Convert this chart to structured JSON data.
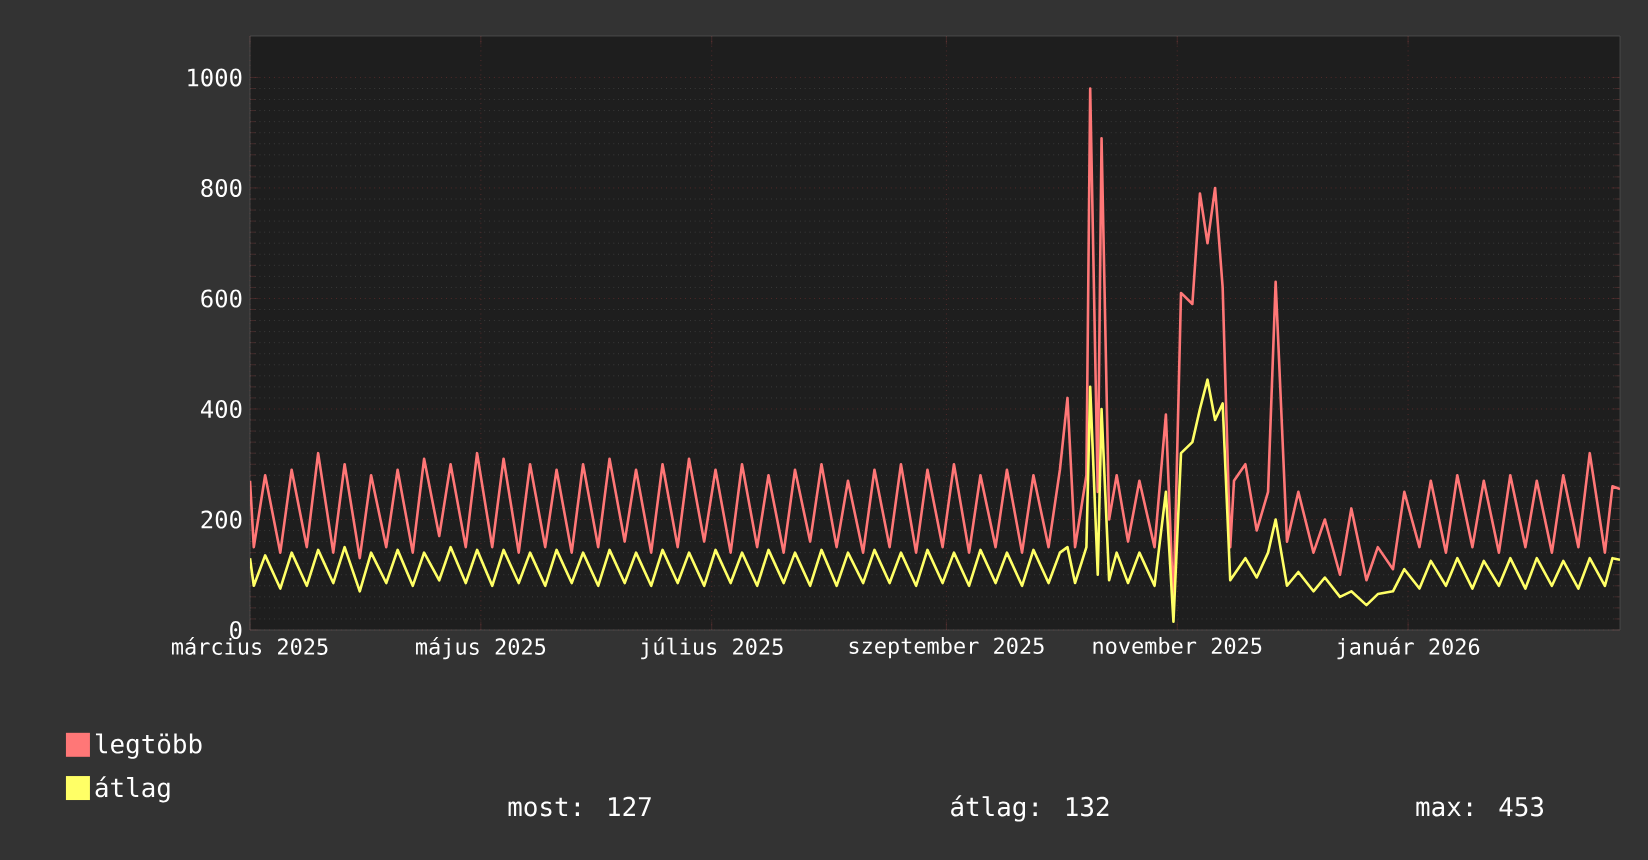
{
  "chart_data": {
    "type": "line",
    "x": [
      "2025-03-01",
      "2025-03-02",
      "2025-03-05",
      "2025-03-09",
      "2025-03-12",
      "2025-03-16",
      "2025-03-19",
      "2025-03-23",
      "2025-03-26",
      "2025-03-30",
      "2025-04-02",
      "2025-04-06",
      "2025-04-09",
      "2025-04-13",
      "2025-04-16",
      "2025-04-20",
      "2025-04-23",
      "2025-04-27",
      "2025-04-30",
      "2025-05-04",
      "2025-05-07",
      "2025-05-11",
      "2025-05-14",
      "2025-05-18",
      "2025-05-21",
      "2025-05-25",
      "2025-05-28",
      "2025-06-01",
      "2025-06-04",
      "2025-06-08",
      "2025-06-11",
      "2025-06-15",
      "2025-06-18",
      "2025-06-22",
      "2025-06-25",
      "2025-06-29",
      "2025-07-02",
      "2025-07-06",
      "2025-07-09",
      "2025-07-13",
      "2025-07-16",
      "2025-07-20",
      "2025-07-23",
      "2025-07-27",
      "2025-07-30",
      "2025-08-03",
      "2025-08-06",
      "2025-08-10",
      "2025-08-13",
      "2025-08-17",
      "2025-08-20",
      "2025-08-24",
      "2025-08-27",
      "2025-08-31",
      "2025-09-03",
      "2025-09-07",
      "2025-09-10",
      "2025-09-14",
      "2025-09-17",
      "2025-09-21",
      "2025-09-24",
      "2025-09-28",
      "2025-10-01",
      "2025-10-03",
      "2025-10-05",
      "2025-10-08",
      "2025-10-09",
      "2025-10-11",
      "2025-10-12",
      "2025-10-14",
      "2025-10-16",
      "2025-10-19",
      "2025-10-22",
      "2025-10-26",
      "2025-10-29",
      "2025-10-31",
      "2025-11-02",
      "2025-11-05",
      "2025-11-07",
      "2025-11-09",
      "2025-11-11",
      "2025-11-13",
      "2025-11-15",
      "2025-11-16",
      "2025-11-19",
      "2025-11-22",
      "2025-11-25",
      "2025-11-27",
      "2025-11-30",
      "2025-12-03",
      "2025-12-07",
      "2025-12-10",
      "2025-12-14",
      "2025-12-17",
      "2025-12-21",
      "2025-12-24",
      "2025-12-28",
      "2025-12-31",
      "2026-01-04",
      "2026-01-07",
      "2026-01-11",
      "2026-01-14",
      "2026-01-18",
      "2026-01-21",
      "2026-01-25",
      "2026-01-28",
      "2026-02-01",
      "2026-02-04",
      "2026-02-08",
      "2026-02-11",
      "2026-02-15",
      "2026-02-18",
      "2026-02-22",
      "2026-02-24",
      "2026-02-26"
    ],
    "series": [
      {
        "name": "legtöbb",
        "color": "#ff7777",
        "values": [
          270,
          150,
          280,
          140,
          290,
          150,
          320,
          140,
          300,
          130,
          280,
          150,
          290,
          140,
          310,
          170,
          300,
          150,
          320,
          150,
          310,
          140,
          300,
          150,
          290,
          140,
          300,
          150,
          310,
          160,
          290,
          140,
          300,
          150,
          310,
          160,
          290,
          140,
          300,
          150,
          280,
          140,
          290,
          160,
          300,
          150,
          270,
          140,
          290,
          150,
          300,
          140,
          290,
          150,
          300,
          140,
          280,
          150,
          290,
          140,
          280,
          150,
          290,
          420,
          150,
          280,
          980,
          250,
          890,
          200,
          280,
          160,
          270,
          150,
          390,
          40,
          610,
          590,
          790,
          700,
          800,
          620,
          150,
          270,
          300,
          180,
          250,
          630,
          160,
          250,
          140,
          200,
          100,
          220,
          90,
          150,
          110,
          250,
          150,
          270,
          140,
          280,
          150,
          270,
          140,
          280,
          150,
          270,
          140,
          280,
          150,
          320,
          140,
          260,
          255
        ]
      },
      {
        "name": "átlag",
        "color": "#ffff66",
        "values": [
          130,
          80,
          135,
          75,
          140,
          80,
          145,
          85,
          150,
          70,
          140,
          85,
          145,
          80,
          140,
          90,
          150,
          85,
          145,
          80,
          145,
          85,
          140,
          80,
          145,
          85,
          140,
          80,
          145,
          85,
          140,
          80,
          145,
          85,
          140,
          80,
          145,
          85,
          140,
          80,
          145,
          85,
          140,
          80,
          145,
          80,
          140,
          85,
          145,
          85,
          140,
          80,
          145,
          85,
          140,
          80,
          145,
          85,
          140,
          80,
          145,
          85,
          140,
          150,
          85,
          150,
          440,
          100,
          400,
          90,
          140,
          85,
          140,
          80,
          250,
          15,
          320,
          340,
          400,
          453,
          380,
          410,
          90,
          100,
          130,
          95,
          140,
          200,
          80,
          105,
          70,
          95,
          60,
          70,
          45,
          65,
          70,
          110,
          75,
          125,
          80,
          130,
          75,
          125,
          80,
          130,
          75,
          130,
          80,
          125,
          75,
          130,
          80,
          130,
          127
        ]
      }
    ],
    "xlim": [
      "2025-03-01",
      "2026-02-26"
    ],
    "xticks": [
      {
        "value": "2025-03-01",
        "label": "március 2025"
      },
      {
        "value": "2025-05-01",
        "label": "május 2025"
      },
      {
        "value": "2025-07-01",
        "label": "július 2025"
      },
      {
        "value": "2025-09-01",
        "label": "szeptember 2025"
      },
      {
        "value": "2025-11-01",
        "label": "november 2025"
      },
      {
        "value": "2026-01-01",
        "label": "január 2026"
      }
    ],
    "ylim": [
      0,
      1075
    ],
    "yticks": [
      0,
      200,
      400,
      600,
      800,
      1000
    ],
    "grid": true,
    "legend": "bottom",
    "annotations": [
      "most: 127",
      "átlag: 132",
      "max: 453"
    ]
  }
}
